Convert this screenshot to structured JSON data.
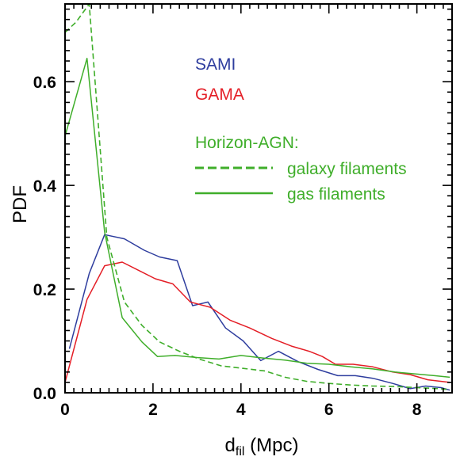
{
  "chart_data": {
    "type": "line",
    "title": "",
    "xlabel_main": "d",
    "xlabel_sub": "fil",
    "xlabel_unit": " (Mpc)",
    "ylabel": "PDF",
    "xlim": [
      0,
      8.8
    ],
    "ylim": [
      0,
      0.75
    ],
    "xticks": [
      0,
      2,
      4,
      6,
      8
    ],
    "xtick_labels": [
      "0",
      "2",
      "4",
      "6",
      "8"
    ],
    "yticks": [
      0.0,
      0.2,
      0.4,
      0.6
    ],
    "ytick_labels": [
      "0.0",
      "0.2",
      "0.4",
      "0.6"
    ],
    "grid": false,
    "series": [
      {
        "name": "SAMI",
        "color": "#2e3d9e",
        "style": "solid",
        "x": [
          0.1,
          0.55,
          0.9,
          1.35,
          1.8,
          2.15,
          2.55,
          2.9,
          3.25,
          3.65,
          4.05,
          4.45,
          4.85,
          5.3,
          5.75,
          6.2,
          6.6,
          7.0,
          7.45,
          7.85,
          8.2,
          8.55,
          8.75
        ],
        "y": [
          0.085,
          0.23,
          0.305,
          0.297,
          0.275,
          0.262,
          0.255,
          0.168,
          0.175,
          0.125,
          0.1,
          0.062,
          0.08,
          0.06,
          0.045,
          0.033,
          0.033,
          0.028,
          0.018,
          0.008,
          0.013,
          0.01,
          0.005
        ]
      },
      {
        "name": "GAMA",
        "color": "#e41e26",
        "style": "solid",
        "x": [
          0.0,
          0.5,
          0.9,
          1.3,
          1.7,
          2.05,
          2.45,
          2.85,
          3.3,
          3.75,
          4.2,
          4.7,
          5.15,
          5.55,
          5.85,
          6.15,
          6.55,
          7.0,
          7.45,
          7.85,
          8.25,
          8.75
        ],
        "y": [
          0.02,
          0.18,
          0.245,
          0.252,
          0.235,
          0.22,
          0.21,
          0.175,
          0.165,
          0.14,
          0.125,
          0.105,
          0.09,
          0.08,
          0.07,
          0.055,
          0.055,
          0.05,
          0.04,
          0.035,
          0.025,
          0.02
        ]
      },
      {
        "name": "galaxy filaments",
        "color": "#3fae2a",
        "style": "dashed",
        "x": [
          0.0,
          0.25,
          0.55,
          0.95,
          1.35,
          1.75,
          2.15,
          2.6,
          3.05,
          3.55,
          4.05,
          4.55,
          5.0,
          5.5,
          6.0,
          6.5,
          7.0,
          7.5,
          8.0,
          8.5,
          8.75
        ],
        "y": [
          0.695,
          0.715,
          0.75,
          0.3,
          0.175,
          0.13,
          0.098,
          0.08,
          0.065,
          0.052,
          0.047,
          0.042,
          0.03,
          0.022,
          0.018,
          0.015,
          0.013,
          0.012,
          0.01,
          0.008,
          0.006
        ]
      },
      {
        "name": "gas filaments",
        "color": "#3fae2a",
        "style": "solid",
        "x": [
          0.0,
          0.5,
          0.9,
          1.3,
          1.75,
          2.1,
          2.5,
          3.0,
          3.5,
          4.0,
          4.5,
          5.0,
          5.5,
          6.0,
          6.5,
          7.0,
          7.5,
          8.0,
          8.4,
          8.75
        ],
        "y": [
          0.495,
          0.645,
          0.31,
          0.145,
          0.098,
          0.07,
          0.072,
          0.068,
          0.065,
          0.072,
          0.067,
          0.063,
          0.057,
          0.055,
          0.05,
          0.046,
          0.04,
          0.036,
          0.033,
          0.03
        ]
      }
    ],
    "legend": {
      "sami": "SAMI",
      "gama": "GAMA",
      "horizon": "Horizon-AGN:",
      "dashed_label": "galaxy filaments",
      "solid_label": "gas filaments"
    }
  },
  "colors": {
    "sami": "#2e3d9e",
    "gama": "#e41e26",
    "horizon": "#3fae2a"
  }
}
